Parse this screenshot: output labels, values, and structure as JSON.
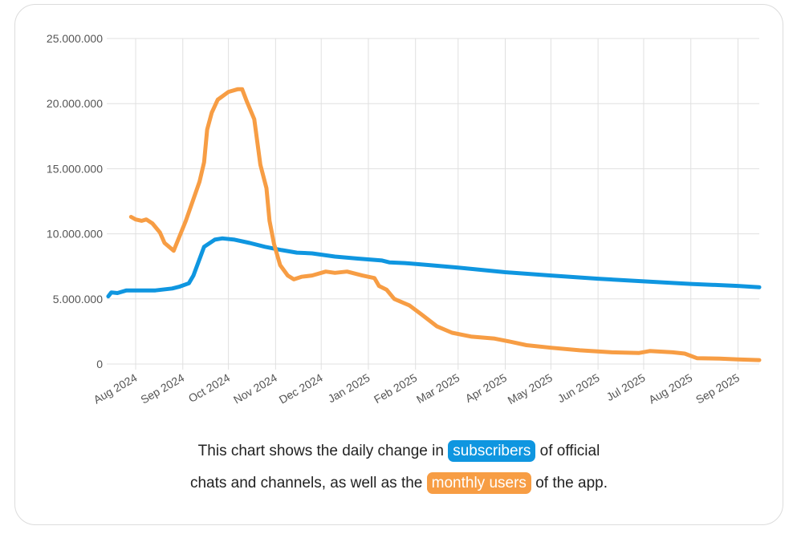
{
  "colors": {
    "subscribers": "#0f96e0",
    "monthly_users": "#f79d44",
    "grid": "#e0e0e0",
    "axis_text": "#555555"
  },
  "chart_data": {
    "type": "line",
    "xlabel": "",
    "ylabel": "",
    "ylim": [
      0,
      25000000
    ],
    "y_ticks": [
      0,
      5000000,
      10000000,
      15000000,
      20000000,
      25000000
    ],
    "y_tick_labels": [
      "0",
      "5.000.000",
      "10.000.000",
      "15.000.000",
      "20.000.000",
      "25.000.000"
    ],
    "x_range": [
      "2024-07-13",
      "2025-09-15"
    ],
    "x_tick_labels": [
      {
        "date": "2024-08-01",
        "label": "Aug 2024"
      },
      {
        "date": "2024-09-01",
        "label": "Sep 2024"
      },
      {
        "date": "2024-10-01",
        "label": "Oct 2024"
      },
      {
        "date": "2024-11-01",
        "label": "Nov 2024"
      },
      {
        "date": "2024-12-01",
        "label": "Dec 2024"
      },
      {
        "date": "2025-01-01",
        "label": "Jan 2025"
      },
      {
        "date": "2025-02-01",
        "label": "Feb 2025"
      },
      {
        "date": "2025-03-01",
        "label": "Mar 2025"
      },
      {
        "date": "2025-04-01",
        "label": "Apr 2025"
      },
      {
        "date": "2025-05-01",
        "label": "May 2025"
      },
      {
        "date": "2025-06-01",
        "label": "Jun 2025"
      },
      {
        "date": "2025-07-01",
        "label": "Jul 2025"
      },
      {
        "date": "2025-08-01",
        "label": "Aug 2025"
      },
      {
        "date": "2025-09-01",
        "label": "Sep 2025"
      }
    ],
    "grid": true,
    "legend": "none",
    "series": [
      {
        "id": "subscribers",
        "points": [
          [
            "2024-07-14",
            5200000
          ],
          [
            "2024-07-16",
            5500000
          ],
          [
            "2024-07-20",
            5450000
          ],
          [
            "2024-07-26",
            5650000
          ],
          [
            "2024-08-14",
            5650000
          ],
          [
            "2024-08-25",
            5800000
          ],
          [
            "2024-08-30",
            5950000
          ],
          [
            "2024-09-05",
            6200000
          ],
          [
            "2024-09-08",
            6800000
          ],
          [
            "2024-09-15",
            9000000
          ],
          [
            "2024-09-22",
            9550000
          ],
          [
            "2024-09-27",
            9650000
          ],
          [
            "2024-10-05",
            9550000
          ],
          [
            "2024-10-15",
            9300000
          ],
          [
            "2024-10-25",
            9000000
          ],
          [
            "2024-11-05",
            8750000
          ],
          [
            "2024-11-15",
            8550000
          ],
          [
            "2024-11-25",
            8500000
          ],
          [
            "2024-12-10",
            8250000
          ],
          [
            "2024-12-25",
            8100000
          ],
          [
            "2025-01-10",
            7950000
          ],
          [
            "2025-01-15",
            7800000
          ],
          [
            "2025-01-25",
            7750000
          ],
          [
            "2025-02-10",
            7600000
          ],
          [
            "2025-03-01",
            7400000
          ],
          [
            "2025-04-01",
            7050000
          ],
          [
            "2025-05-01",
            6800000
          ],
          [
            "2025-06-01",
            6550000
          ],
          [
            "2025-07-01",
            6350000
          ],
          [
            "2025-08-01",
            6150000
          ],
          [
            "2025-09-01",
            6000000
          ],
          [
            "2025-09-15",
            5900000
          ]
        ]
      },
      {
        "id": "monthly_users",
        "points": [
          [
            "2024-07-29",
            11300000
          ],
          [
            "2024-08-01",
            11100000
          ],
          [
            "2024-08-05",
            11000000
          ],
          [
            "2024-08-08",
            11100000
          ],
          [
            "2024-08-12",
            10800000
          ],
          [
            "2024-08-17",
            10100000
          ],
          [
            "2024-08-20",
            9300000
          ],
          [
            "2024-08-26",
            8700000
          ],
          [
            "2024-09-03",
            11000000
          ],
          [
            "2024-09-12",
            14000000
          ],
          [
            "2024-09-15",
            15500000
          ],
          [
            "2024-09-17",
            18000000
          ],
          [
            "2024-09-20",
            19300000
          ],
          [
            "2024-09-24",
            20300000
          ],
          [
            "2024-10-01",
            20900000
          ],
          [
            "2024-10-07",
            21100000
          ],
          [
            "2024-10-10",
            21100000
          ],
          [
            "2024-10-13",
            20200000
          ],
          [
            "2024-10-18",
            18800000
          ],
          [
            "2024-10-22",
            15300000
          ],
          [
            "2024-10-26",
            13500000
          ],
          [
            "2024-10-28",
            11000000
          ],
          [
            "2024-10-31",
            9200000
          ],
          [
            "2024-11-04",
            7600000
          ],
          [
            "2024-11-09",
            6800000
          ],
          [
            "2024-11-13",
            6500000
          ],
          [
            "2024-11-18",
            6700000
          ],
          [
            "2024-11-25",
            6800000
          ],
          [
            "2024-12-04",
            7100000
          ],
          [
            "2024-12-10",
            7000000
          ],
          [
            "2024-12-18",
            7100000
          ],
          [
            "2024-12-28",
            6800000
          ],
          [
            "2025-01-05",
            6600000
          ],
          [
            "2025-01-08",
            6000000
          ],
          [
            "2025-01-13",
            5700000
          ],
          [
            "2025-01-18",
            5000000
          ],
          [
            "2025-01-28",
            4500000
          ],
          [
            "2025-02-05",
            3800000
          ],
          [
            "2025-02-15",
            2900000
          ],
          [
            "2025-02-25",
            2400000
          ],
          [
            "2025-03-10",
            2100000
          ],
          [
            "2025-03-25",
            1950000
          ],
          [
            "2025-04-05",
            1700000
          ],
          [
            "2025-04-15",
            1450000
          ],
          [
            "2025-05-01",
            1250000
          ],
          [
            "2025-05-20",
            1050000
          ],
          [
            "2025-06-10",
            900000
          ],
          [
            "2025-06-28",
            850000
          ],
          [
            "2025-07-05",
            1000000
          ],
          [
            "2025-07-20",
            900000
          ],
          [
            "2025-07-28",
            800000
          ],
          [
            "2025-08-05",
            450000
          ],
          [
            "2025-08-20",
            420000
          ],
          [
            "2025-09-01",
            350000
          ],
          [
            "2025-09-15",
            300000
          ]
        ]
      }
    ]
  },
  "caption": {
    "line1_prefix": "This chart shows the daily change in ",
    "line1_highlight": "subscribers",
    "line1_suffix": " of official",
    "line2_prefix": "chats and channels, as well as the ",
    "line2_highlight": "monthly users",
    "line2_suffix": " of the app."
  }
}
